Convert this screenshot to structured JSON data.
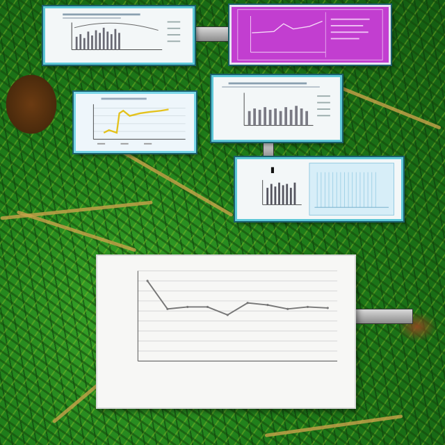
{
  "scene": {
    "background": "jungle foliage",
    "accent_colors": {
      "panel_border": "#5ec8d8",
      "magenta_panel": "#c23ed0",
      "line_series": "#777777"
    }
  },
  "panels": [
    {
      "id": "bar-panel-top-left",
      "type": "bar"
    },
    {
      "id": "line-panel-magenta",
      "type": "line"
    },
    {
      "id": "line-panel-yellow",
      "type": "line"
    },
    {
      "id": "bar-panel-middle",
      "type": "bar"
    },
    {
      "id": "bar-panel-lower-right",
      "type": "bar"
    }
  ],
  "chart_data": {
    "type": "line",
    "title": "",
    "xlabel": "",
    "ylabel": "",
    "categories": [
      "",
      "",
      "",
      "",
      "",
      "",
      "",
      "",
      "",
      ""
    ],
    "values": [
      8,
      5.2,
      5.4,
      5.4,
      4.6,
      5.8,
      5.6,
      5.2,
      5.4,
      5.3
    ],
    "ylim": [
      0,
      9
    ],
    "yticks": [
      "",
      "",
      "",
      "",
      "",
      "",
      "",
      "",
      "",
      ""
    ],
    "grid": true,
    "legend": "none"
  }
}
